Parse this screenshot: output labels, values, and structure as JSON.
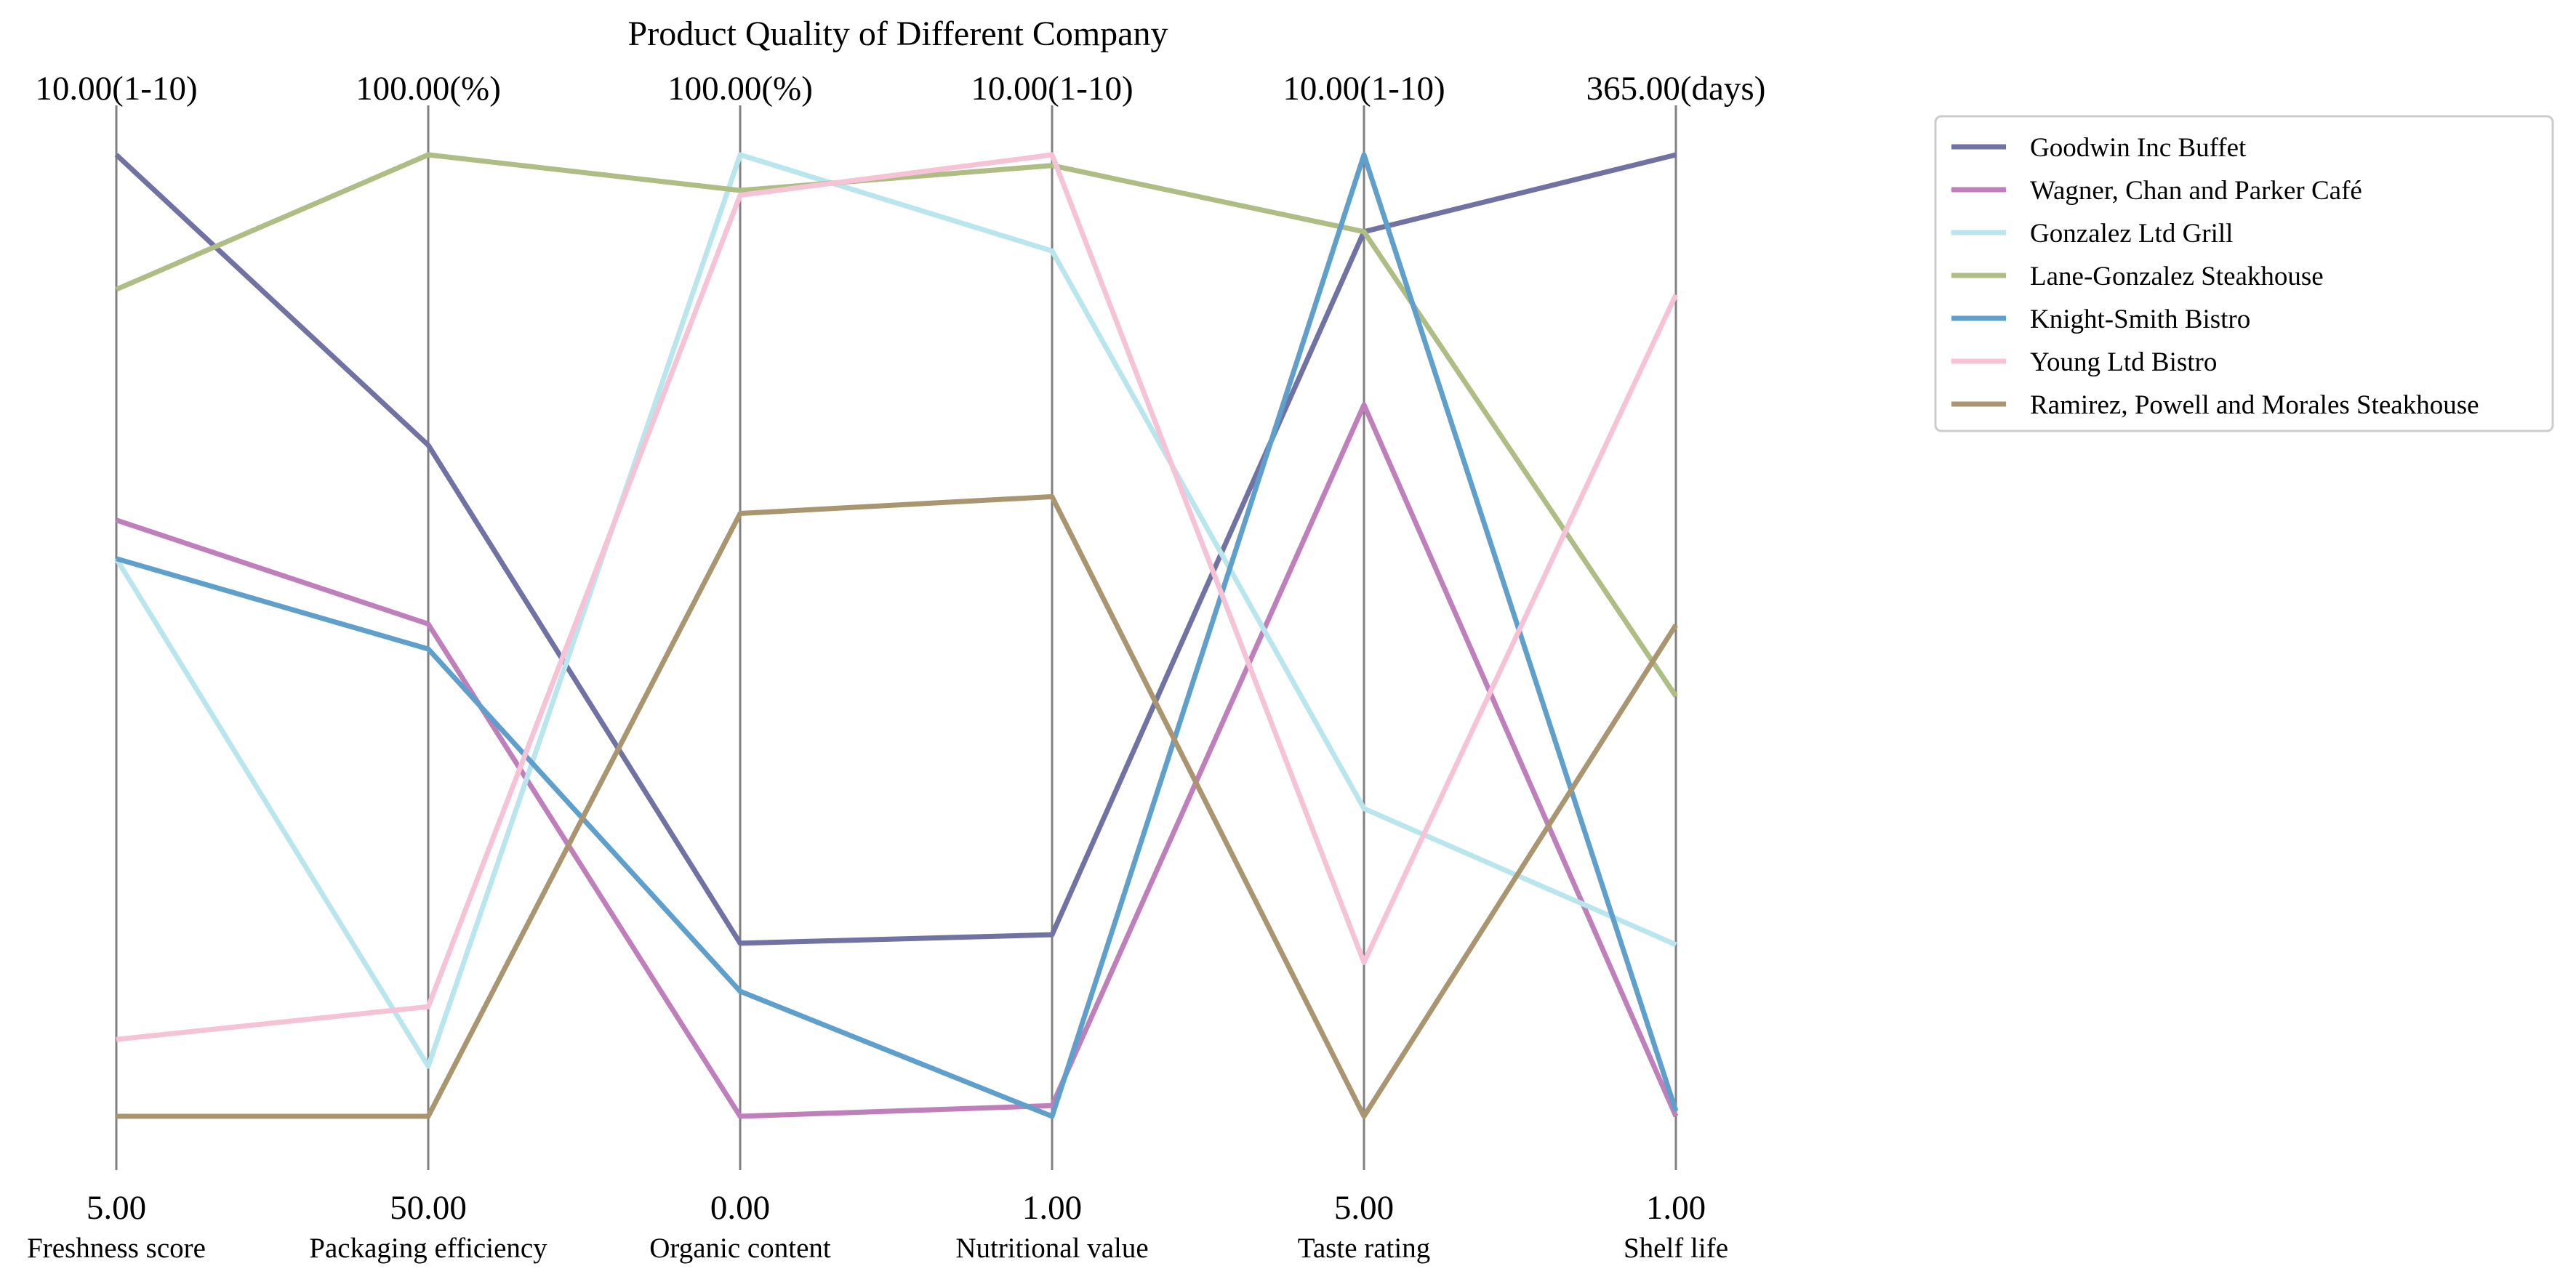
{
  "chart_data": {
    "type": "parallel_coordinates",
    "title": "Product Quality of Different Company",
    "axes": [
      {
        "name": "Freshness score",
        "min": 5.0,
        "max": 10.0,
        "min_label": "5.00",
        "max_label": "10.00(1-10)"
      },
      {
        "name": "Packaging efficiency",
        "min": 50.0,
        "max": 100.0,
        "min_label": "50.00",
        "max_label": "100.00(%)"
      },
      {
        "name": "Organic content",
        "min": 0.0,
        "max": 100.0,
        "min_label": "0.00",
        "max_label": "100.00(%)"
      },
      {
        "name": "Nutritional value",
        "min": 1.0,
        "max": 10.0,
        "min_label": "1.00",
        "max_label": "10.00(1-10)"
      },
      {
        "name": "Taste rating",
        "min": 5.0,
        "max": 10.0,
        "min_label": "5.00",
        "max_label": "10.00(1-10)"
      },
      {
        "name": "Shelf life",
        "min": 1.0,
        "max": 365.0,
        "min_label": "1.00",
        "max_label": "365.00(days)"
      }
    ],
    "series": [
      {
        "name": "Goodwin Inc  Buffet",
        "color": "#6f72a2",
        "values": [
          10.0,
          84.9,
          18.0,
          2.7,
          9.6,
          365.0
        ]
      },
      {
        "name": "Wagner, Chan and Parker  Café",
        "color": "#bf7fbb",
        "values": [
          8.1,
          75.6,
          0.0,
          1.1,
          8.7,
          1.0
        ]
      },
      {
        "name": "Gonzalez Ltd  Grill",
        "color": "#b9e5ec",
        "values": [
          7.9,
          52.6,
          100.0,
          9.1,
          6.6,
          66.0
        ]
      },
      {
        "name": "Lane-Gonzalez  Steakhouse",
        "color": "#adbd83",
        "values": [
          9.3,
          100.0,
          96.3,
          9.9,
          9.6,
          160.0
        ]
      },
      {
        "name": "Knight-Smith  Bistro",
        "color": "#5f9fcc",
        "values": [
          7.9,
          74.3,
          13.0,
          1.0,
          10.0,
          3.0
        ]
      },
      {
        "name": "Young Ltd  Bistro",
        "color": "#f6c3d6",
        "values": [
          5.4,
          55.7,
          95.8,
          10.0,
          5.8,
          312.0
        ]
      },
      {
        "name": "Ramirez, Powell and Morales  Steakhouse",
        "color": "#a99670",
        "values": [
          5.0,
          50.0,
          62.7,
          6.8,
          5.0,
          187.0
        ]
      }
    ],
    "legend_position": "right",
    "grid": false
  }
}
